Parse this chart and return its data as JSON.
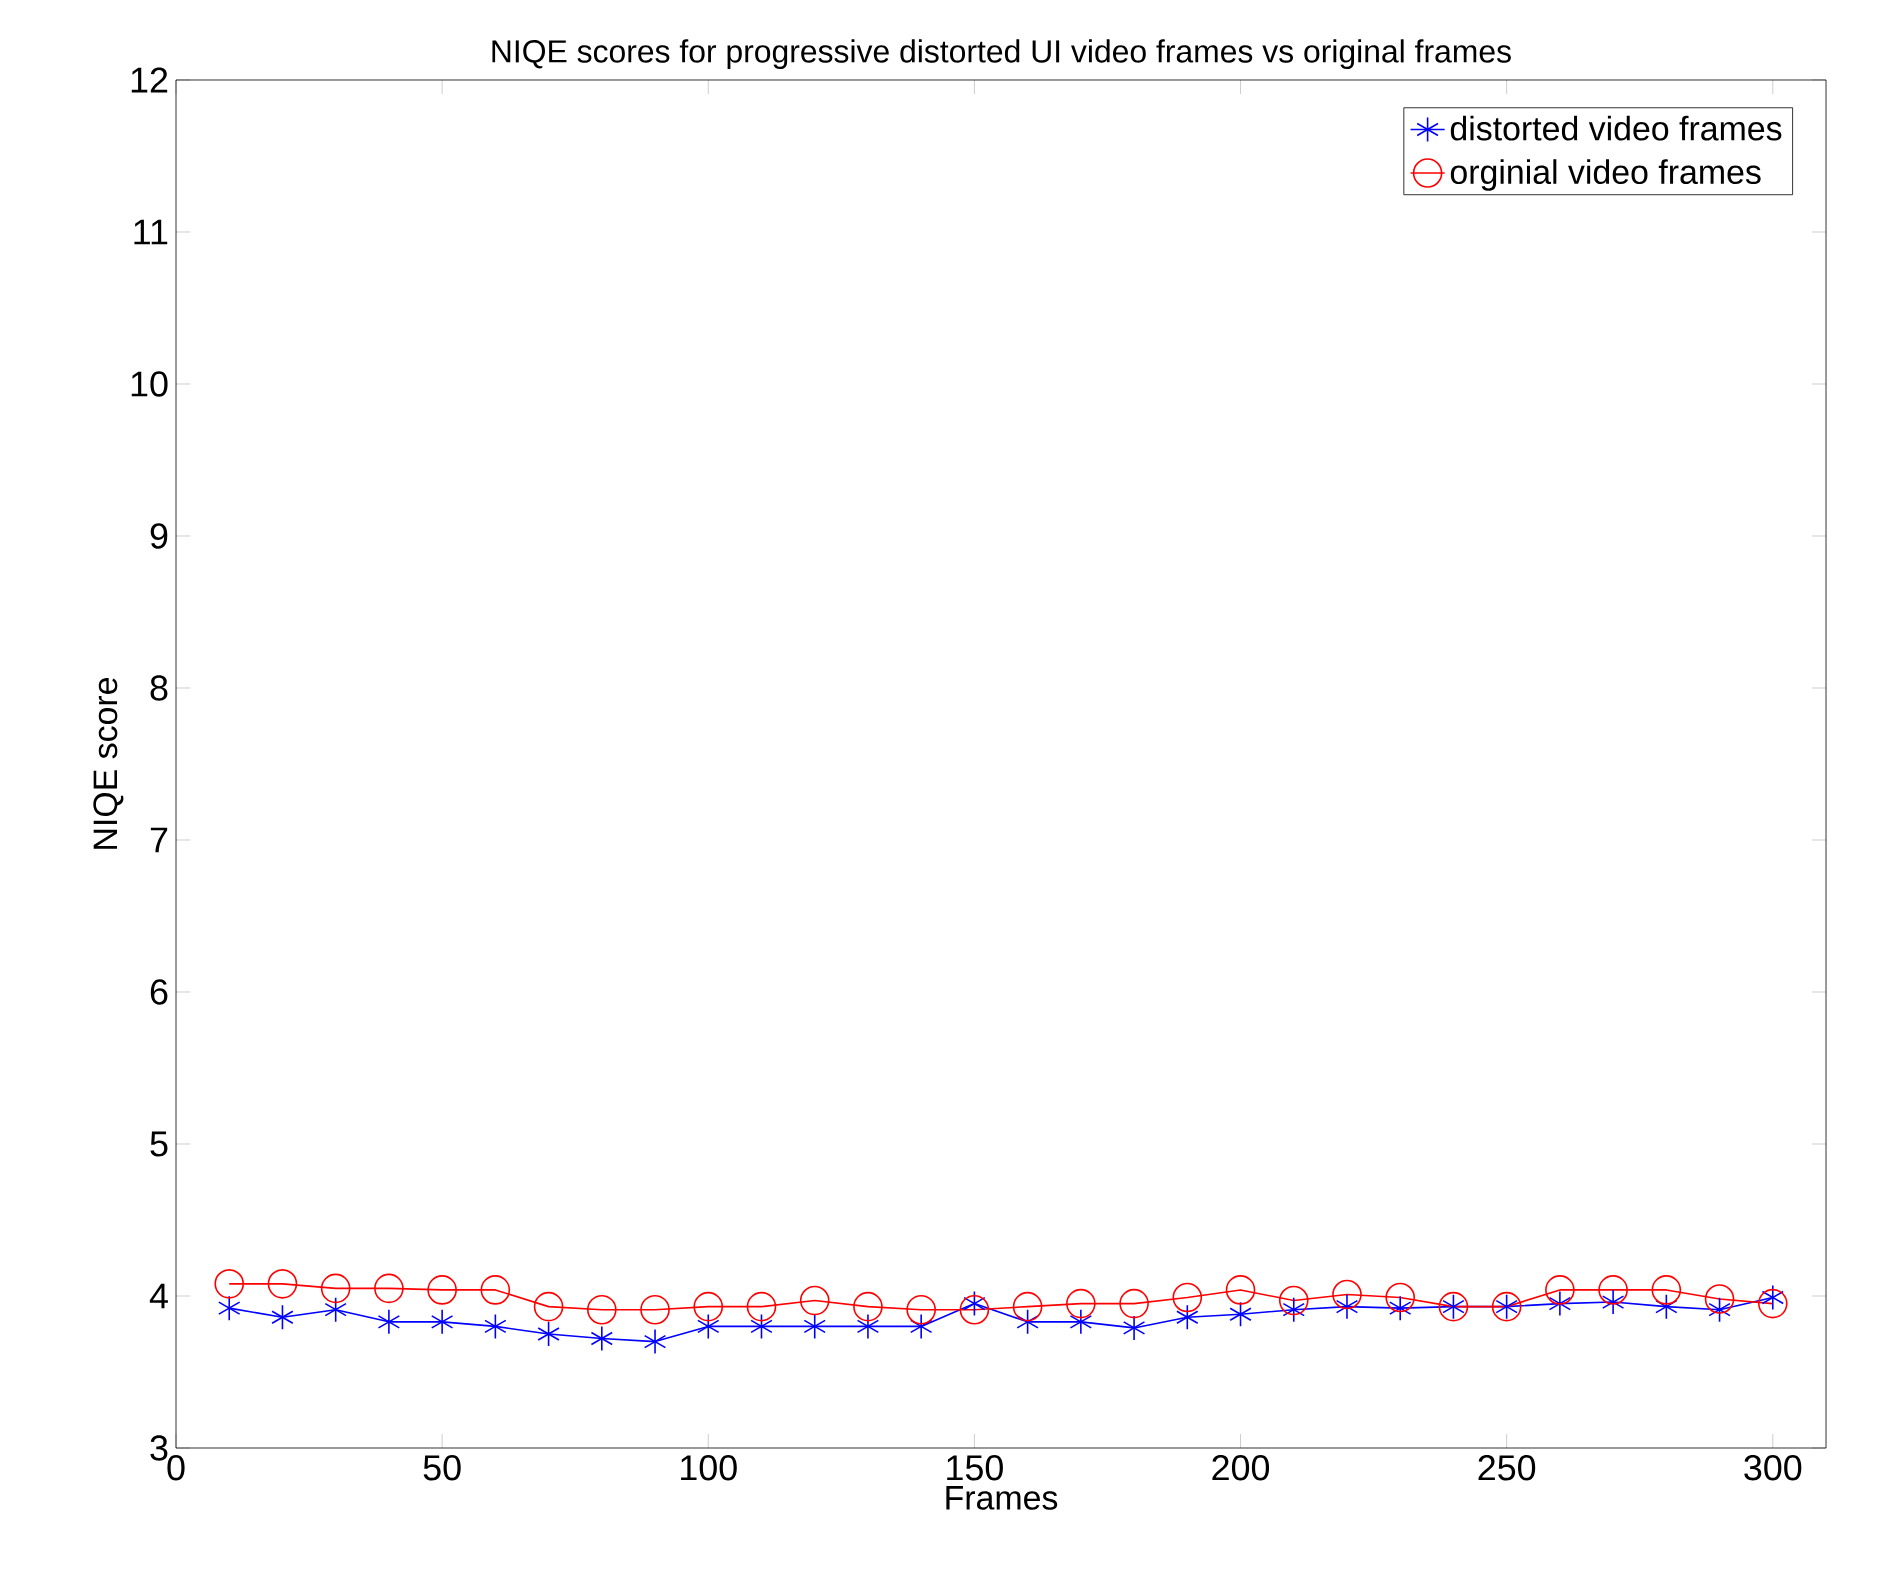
{
  "chart_data": {
    "type": "line",
    "title": "NIQE scores for progressive distorted UI video frames vs original frames",
    "xlabel": "Frames",
    "ylabel": "NIQE score",
    "x": [
      10,
      20,
      30,
      40,
      50,
      60,
      70,
      80,
      90,
      100,
      110,
      120,
      130,
      140,
      150,
      160,
      170,
      180,
      190,
      200,
      210,
      220,
      230,
      240,
      250,
      260,
      270,
      280,
      290,
      300
    ],
    "series": [
      {
        "name": "distorted video frames",
        "color": "#0000ff",
        "marker": "cross",
        "values": [
          3.92,
          3.86,
          3.91,
          3.83,
          3.83,
          3.8,
          3.75,
          3.72,
          3.7,
          3.8,
          3.8,
          3.8,
          3.8,
          3.8,
          3.95,
          3.83,
          3.83,
          3.79,
          3.86,
          3.88,
          3.91,
          3.93,
          3.92,
          3.93,
          3.93,
          3.95,
          3.96,
          3.93,
          3.91,
          3.99
        ]
      },
      {
        "name": "orginial video frames",
        "color": "#ff0000",
        "marker": "circle",
        "values": [
          4.08,
          4.08,
          4.05,
          4.05,
          4.04,
          4.04,
          3.93,
          3.91,
          3.91,
          3.93,
          3.93,
          3.97,
          3.93,
          3.91,
          3.91,
          3.93,
          3.95,
          3.95,
          3.99,
          4.04,
          3.97,
          4.01,
          3.99,
          3.93,
          3.93,
          4.04,
          4.04,
          4.04,
          3.98,
          3.95
        ]
      }
    ],
    "xlim": [
      0,
      310
    ],
    "ylim": [
      3,
      12
    ],
    "xticks": [
      0,
      50,
      100,
      150,
      200,
      250,
      300
    ],
    "yticks": [
      3,
      4,
      5,
      6,
      7,
      8,
      9,
      10,
      11,
      12
    ],
    "legend": "top right",
    "grid": false,
    "line_style": "solid"
  }
}
